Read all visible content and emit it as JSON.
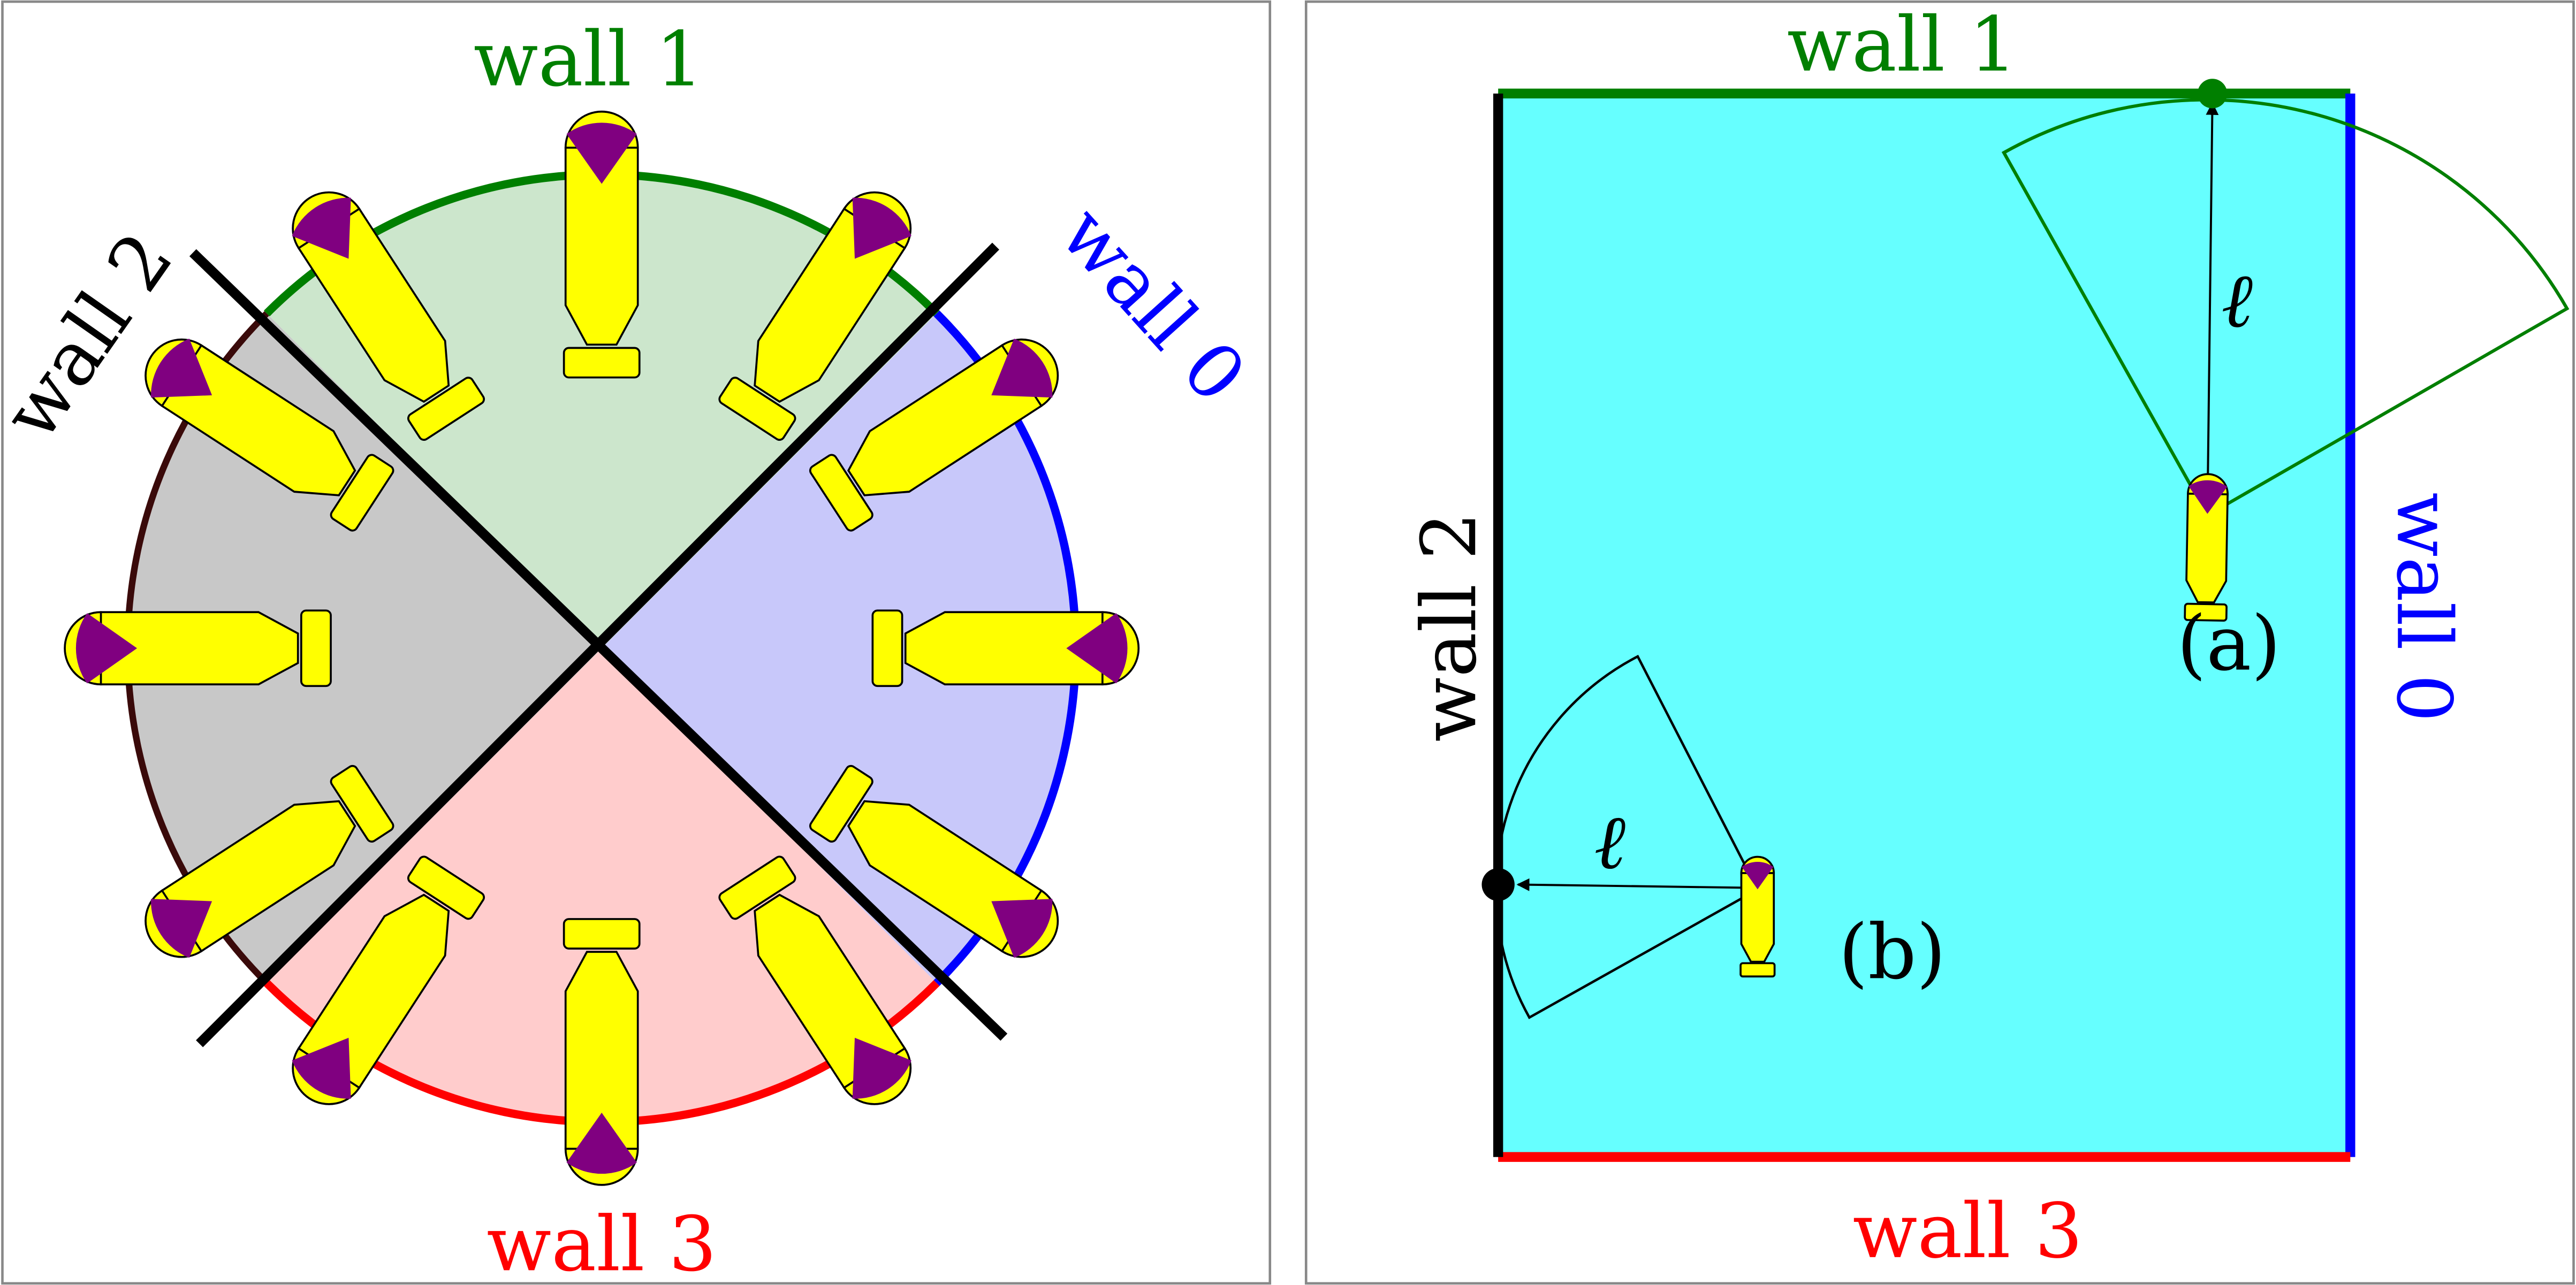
{
  "colors": {
    "wall0": "#0000ff",
    "wall1": "#007f00",
    "wall2": "#000000",
    "wall2_arc": "#3a0a0a",
    "wall3": "#ff0000",
    "region_wall0": "#c8c8fa",
    "region_wall1": "#cce6cc",
    "region_wall2": "#c8c8c8",
    "region_wall3": "#ffcccc",
    "room_fill": "#66ffff",
    "robot_body": "#ffff00",
    "robot_sensor": "#800080",
    "green_arc": "#007f00",
    "black_arc": "#000000"
  },
  "left_panel": {
    "labels": {
      "wall0": "wall 0",
      "wall1": "wall 1",
      "wall2": "wall 2",
      "wall3": "wall 3"
    }
  },
  "right_panel": {
    "labels": {
      "wall0": "wall 0",
      "wall1": "wall 1",
      "wall2": "wall 2",
      "wall3": "wall 3",
      "case_a": "(a)",
      "case_b": "(b)",
      "ell_a": "ℓ",
      "ell_b": "ℓ"
    }
  }
}
